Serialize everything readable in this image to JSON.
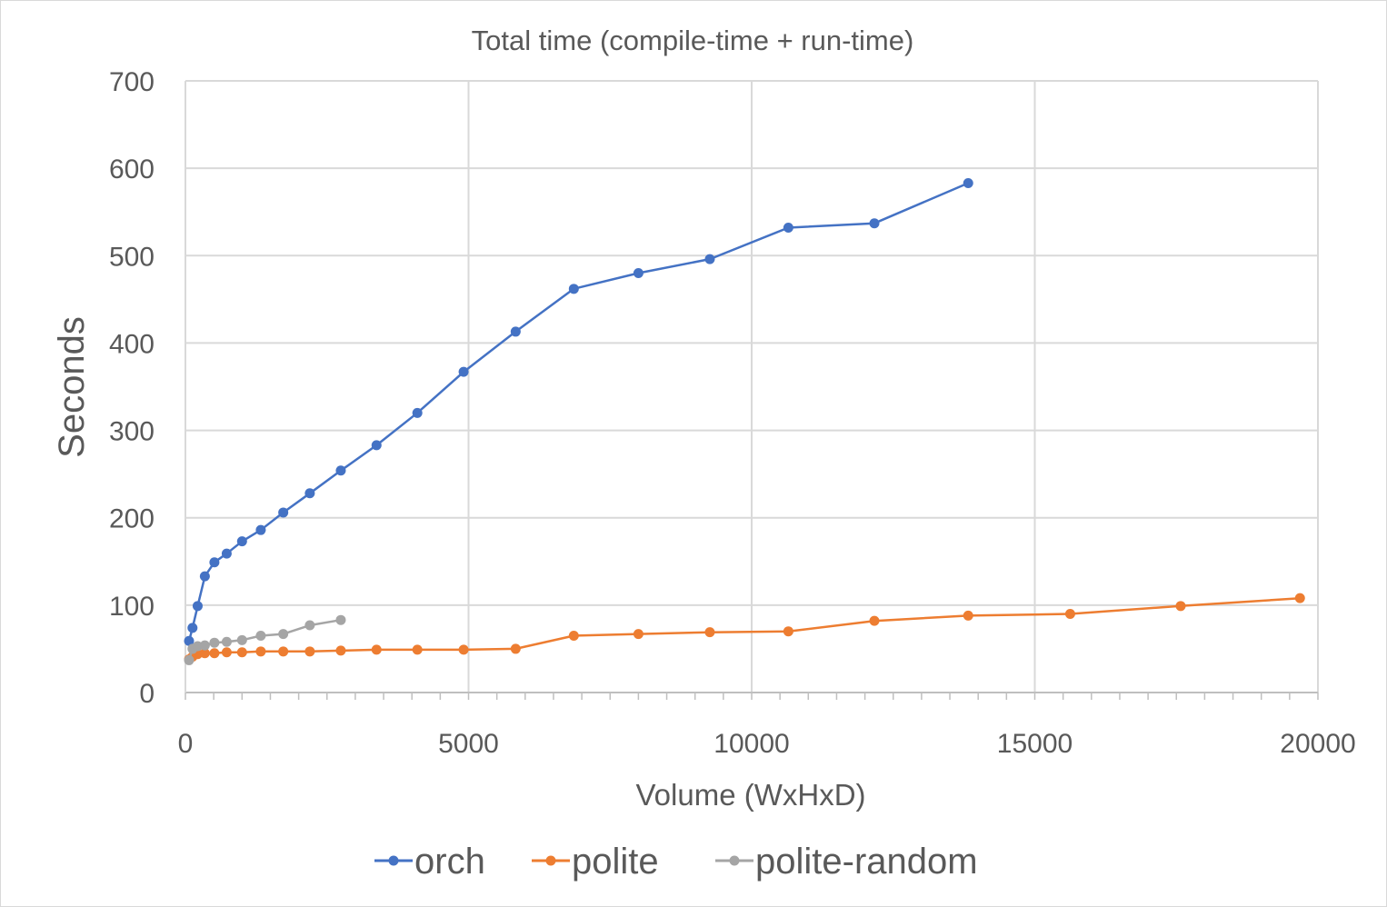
{
  "chart_data": {
    "type": "line",
    "title": "Total time (compile-time + run-time)",
    "xlabel": "Volume (WxHxD)",
    "ylabel": "Seconds",
    "xlim": [
      0,
      20000
    ],
    "ylim": [
      0,
      700
    ],
    "x_ticks": [
      "0",
      "5000",
      "10000",
      "15000",
      "20000"
    ],
    "y_ticks": [
      "0",
      "100",
      "200",
      "300",
      "400",
      "500",
      "600",
      "700"
    ],
    "grid": true,
    "legend": "bottom",
    "series": [
      {
        "name": "orch",
        "color": "#4472c4",
        "x": [
          64,
          125,
          216,
          343,
          512,
          729,
          1000,
          1331,
          1728,
          2197,
          2744,
          3375,
          4096,
          4913,
          5832,
          6859,
          8000,
          9261,
          10648,
          12167,
          13824
        ],
        "y": [
          59,
          74,
          99,
          133,
          149,
          159,
          173,
          186,
          206,
          228,
          254,
          283,
          320,
          367,
          413,
          462,
          480,
          496,
          532,
          537,
          583
        ]
      },
      {
        "name": "polite",
        "color": "#ed7d31",
        "x": [
          64,
          125,
          216,
          343,
          512,
          729,
          1000,
          1331,
          1728,
          2197,
          2744,
          3375,
          4096,
          4913,
          5832,
          6859,
          8000,
          9261,
          10648,
          12167,
          13824,
          15625,
          17576,
          19683
        ],
        "y": [
          38,
          41,
          44,
          45,
          45,
          46,
          46,
          47,
          47,
          47,
          48,
          49,
          49,
          49,
          50,
          65,
          67,
          69,
          70,
          82,
          88,
          90,
          99,
          108
        ]
      },
      {
        "name": "polite-random",
        "color": "#a5a5a5",
        "x": [
          64,
          125,
          216,
          343,
          512,
          729,
          1000,
          1331,
          1728,
          2197,
          2744
        ],
        "y": [
          37,
          50,
          53,
          54,
          57,
          58,
          60,
          65,
          67,
          77,
          83
        ]
      }
    ]
  }
}
